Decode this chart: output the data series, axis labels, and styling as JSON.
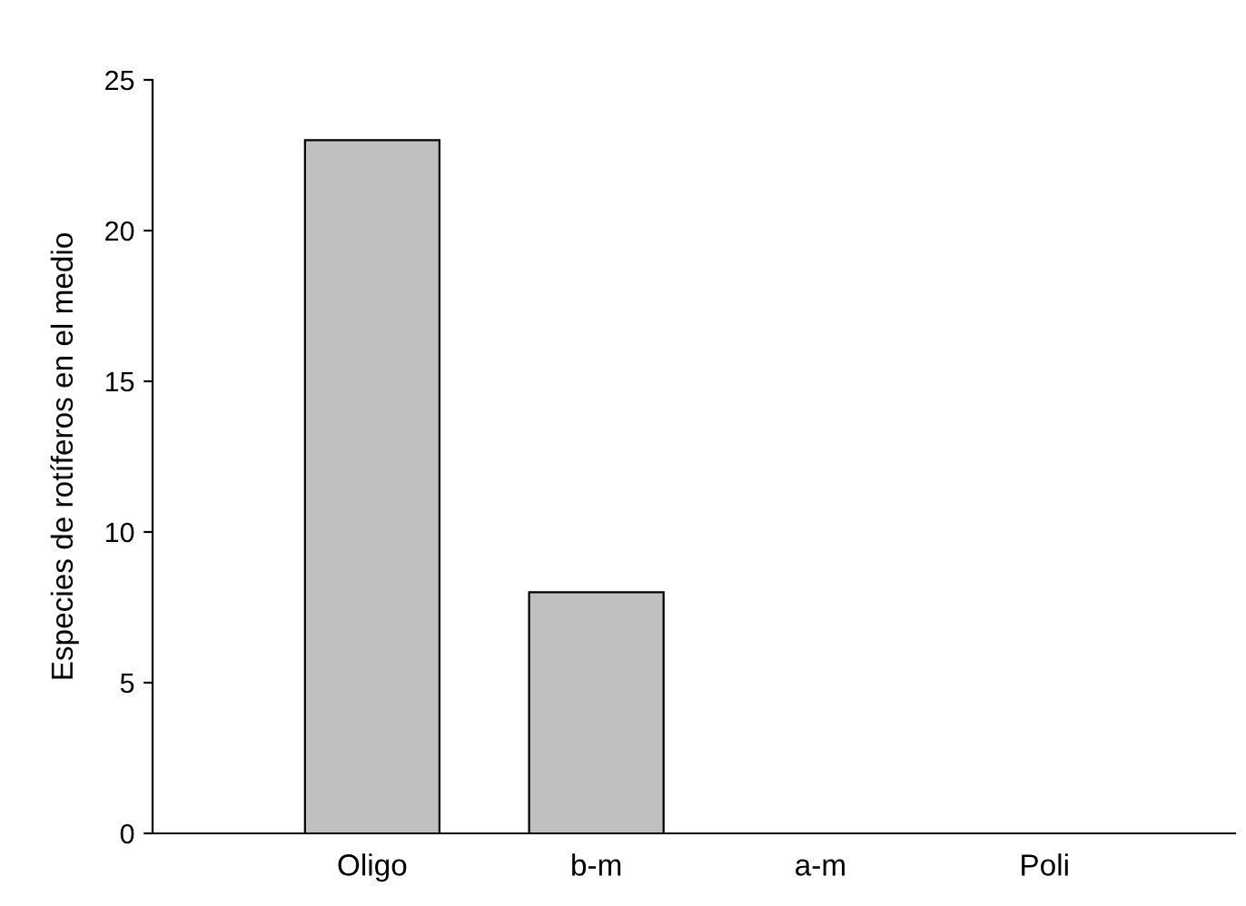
{
  "chart_data": {
    "type": "bar",
    "ylabel": "Especies de rotíferos en el medio",
    "categories": [
      "Oligo",
      "b-m",
      "a-m",
      "Poli"
    ],
    "values": [
      23,
      8,
      0,
      0
    ],
    "color": "#c0c0c0",
    "ylim": [
      0,
      25
    ],
    "yticks": [
      0,
      5,
      10,
      15,
      20,
      25
    ],
    "grid": false,
    "legend": false
  }
}
